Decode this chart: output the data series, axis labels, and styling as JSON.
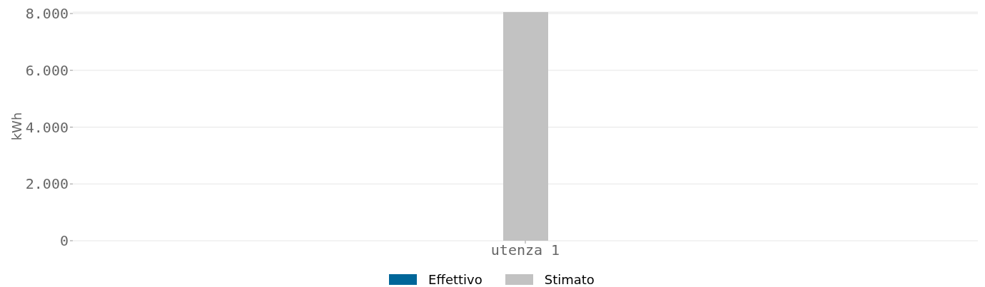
{
  "chart_data": {
    "type": "bar",
    "ylabel": "kWh",
    "categories": [
      "utenza 1"
    ],
    "series": [
      {
        "name": "Effettivo",
        "color": "#006699",
        "values": [
          null
        ]
      },
      {
        "name": "Stimato",
        "color": "#c2c2c2",
        "values": [
          8050
        ]
      }
    ],
    "ylim": [
      0,
      8050
    ],
    "yticks": [
      {
        "value": 0,
        "label": "0"
      },
      {
        "value": 2000,
        "label": "2.000"
      },
      {
        "value": 4000,
        "label": "4.000"
      },
      {
        "value": 6000,
        "label": "6.000"
      },
      {
        "value": 8000,
        "label": "8.000"
      }
    ],
    "grid": "y",
    "legend": "bottom"
  }
}
